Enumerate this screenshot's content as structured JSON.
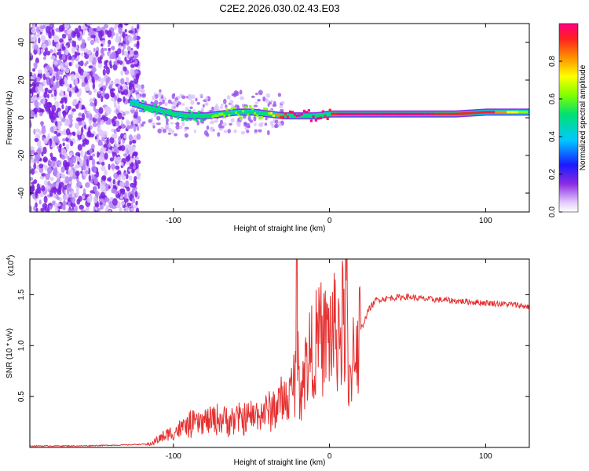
{
  "title": "C2E2.2026.030.02.43.E03",
  "chart_data": [
    {
      "type": "heatmap",
      "title": "C2E2.2026.030.02.43.E03",
      "xlabel": "Height of straight line (km)",
      "ylabel": "Frequency (Hz)",
      "xlim": [
        -192,
        128
      ],
      "ylim": [
        -50,
        50
      ],
      "xticks": [
        -100,
        0,
        100
      ],
      "xtick_labels": [
        "-100",
        "0",
        "100"
      ],
      "yticks": [
        -40,
        -20,
        0,
        20,
        40
      ],
      "ytick_labels": [
        "-40",
        "-20",
        "0",
        "20",
        "40"
      ],
      "colorbar": {
        "label": "Normalized spectral amplitude",
        "range": [
          0,
          1
        ],
        "ticks": [
          0.0,
          0.2,
          0.4,
          0.6,
          0.8
        ],
        "tick_labels": [
          "0.0",
          "0.2",
          "0.4",
          "0.6",
          "0.8"
        ]
      },
      "ridge": {
        "x": [
          -128,
          -120,
          -110,
          -100,
          -90,
          -80,
          -70,
          -60,
          -50,
          -40,
          -30,
          -20,
          -10,
          0,
          10,
          20,
          40,
          60,
          80,
          100,
          128
        ],
        "freq": [
          8,
          6,
          4,
          2,
          1,
          1,
          2,
          3,
          3,
          2,
          1,
          1,
          1,
          2,
          2,
          2,
          2,
          2,
          2,
          3,
          3
        ],
        "amplitude": [
          0.3,
          0.4,
          0.5,
          0.45,
          0.45,
          0.5,
          0.55,
          0.55,
          0.6,
          0.6,
          0.9,
          0.95,
          0.95,
          0.9,
          0.95,
          0.95,
          0.95,
          0.95,
          0.85,
          0.9,
          0.5
        ]
      }
    },
    {
      "type": "line",
      "xlabel": "Height of straight line (km)",
      "ylabel": "SNR (10 * v/v)",
      "multiplier_label": "(x10",
      "multiplier_exp": "4",
      "multiplier_close": ")",
      "xlim": [
        -192,
        128
      ],
      "ylim": [
        0,
        1.85
      ],
      "xticks": [
        -100,
        0,
        100
      ],
      "xtick_labels": [
        "-100",
        "0",
        "100"
      ],
      "yticks": [
        0.5,
        1.0,
        1.5
      ],
      "ytick_labels": [
        "0.5",
        "1.0",
        "1.5"
      ],
      "series": [
        {
          "name": "SNR",
          "color": "#e53030",
          "x": [
            -192,
            -160,
            -130,
            -115,
            -110,
            -100,
            -90,
            -80,
            -70,
            -60,
            -50,
            -40,
            -35,
            -30,
            -25,
            -22,
            -21,
            -20,
            -15,
            -10,
            -5,
            0,
            5,
            10,
            11,
            12,
            15,
            20,
            25,
            30,
            40,
            50,
            60,
            70,
            80,
            90,
            100,
            110,
            120,
            128
          ],
          "y": [
            0.01,
            0.01,
            0.02,
            0.03,
            0.08,
            0.15,
            0.22,
            0.25,
            0.28,
            0.27,
            0.3,
            0.35,
            0.4,
            0.45,
            0.5,
            0.7,
            1.85,
            0.6,
            0.8,
            1.0,
            1.05,
            1.1,
            1.15,
            1.2,
            1.85,
            0.4,
            1.0,
            1.15,
            1.35,
            1.45,
            1.47,
            1.48,
            1.46,
            1.45,
            1.44,
            1.43,
            1.42,
            1.41,
            1.4,
            1.38
          ]
        }
      ]
    }
  ]
}
